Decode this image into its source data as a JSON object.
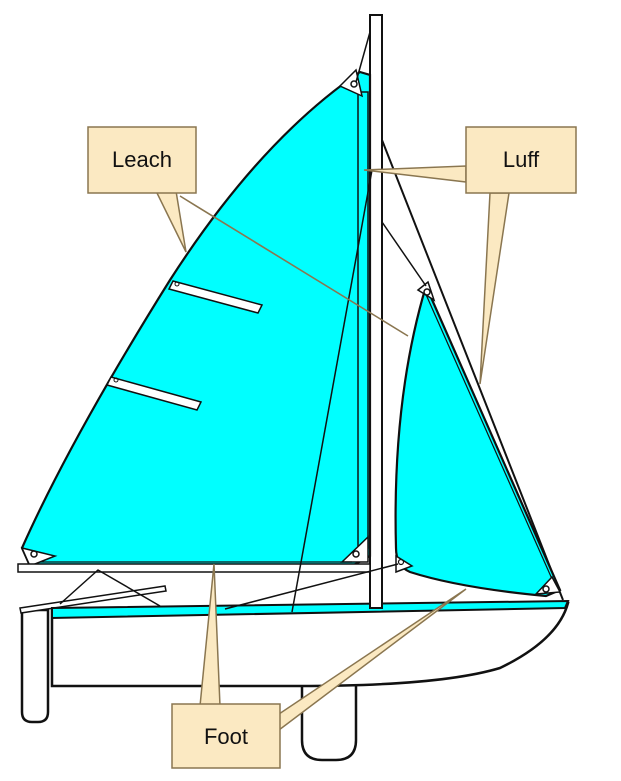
{
  "labels": {
    "leach": "Leach",
    "luff": "Luff",
    "foot": "Foot"
  },
  "colors": {
    "sail": "#00ffff",
    "callout_fill": "#fbe9c2",
    "callout_stroke": "#8a7650",
    "outline": "#111111"
  }
}
